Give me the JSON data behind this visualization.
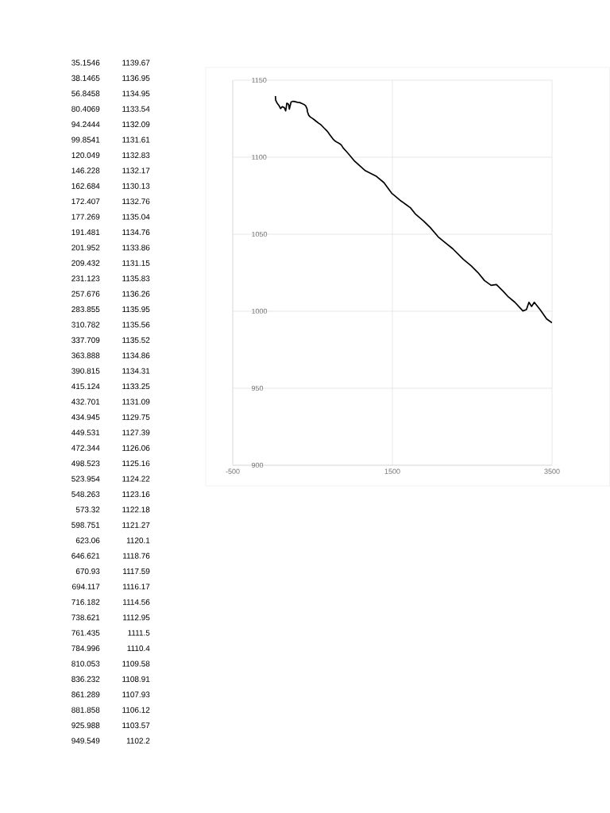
{
  "chart_data": [
    {
      "type": "other",
      "annotations": [
        "35.1546",
        "1139.67",
        "38.1465",
        "1136.95",
        "56.8458",
        "1134.95",
        "80.4069",
        "1133.54",
        "94.2444",
        "1132.09",
        "99.8541",
        "1131.61",
        "120.049",
        "1132.83",
        "146.228",
        "1132.17",
        "162.684",
        "1130.13",
        "172.407",
        "1132.76",
        "177.269",
        "1135.04",
        "191.481",
        "1134.76",
        "201.952",
        "1133.86",
        "209.432",
        "1131.15",
        "231.123",
        "1135.83",
        "257.676",
        "1136.26",
        "283.855",
        "1135.95",
        "310.782",
        "1135.56",
        "337.709",
        "1135.52",
        "363.888",
        "1134.86",
        "390.815",
        "1134.31",
        "415.124",
        "1133.25",
        "432.701",
        "1131.09",
        "434.945",
        "1129.75",
        "449.531",
        "1127.39",
        "472.344",
        "1126.06",
        "498.523",
        "1125.16",
        "523.954",
        "1124.22",
        "548.263",
        "1123.16",
        "573.32",
        "1122.18",
        "598.751",
        "1121.27",
        "623.06",
        "1120.1",
        "646.621",
        "1118.76",
        "670.93",
        "1117.59",
        "694.117",
        "1116.17",
        "716.182",
        "1114.56",
        "738.621",
        "1112.95",
        "761.435",
        "1111.5",
        "784.996",
        "1110.4",
        "810.053",
        "1109.58",
        "836.232",
        "1108.91",
        "861.289",
        "1107.93",
        "881.858",
        "1106.12",
        "925.988",
        "1103.57",
        "949.549",
        "1102.2"
      ]
    },
    {
      "type": "line",
      "x": [
        35,
        38,
        57,
        80,
        94,
        100,
        120,
        146,
        163,
        172,
        177,
        191,
        202,
        209,
        231,
        258,
        284,
        311,
        338,
        364,
        391,
        415,
        433,
        435,
        450,
        472,
        499,
        524,
        548,
        573,
        599,
        623,
        647,
        671,
        694,
        716,
        739,
        761,
        785,
        810,
        836,
        861,
        882,
        926,
        950,
        1029,
        1162,
        1294,
        1394,
        1493,
        1510,
        1610,
        1726,
        1792,
        1891,
        1975,
        2074,
        2174,
        2256,
        2389,
        2488,
        2572,
        2654,
        2737,
        2803,
        2886,
        2953,
        3035,
        3135,
        3179,
        3211,
        3244,
        3278,
        3351,
        3433,
        3500
      ],
      "values": [
        1139.7,
        1137.0,
        1135.0,
        1133.5,
        1132.1,
        1131.6,
        1132.8,
        1132.2,
        1130.1,
        1132.8,
        1135.0,
        1134.8,
        1133.9,
        1131.2,
        1135.8,
        1136.3,
        1136.0,
        1135.6,
        1135.5,
        1134.9,
        1134.3,
        1133.3,
        1131.1,
        1129.8,
        1127.4,
        1126.1,
        1125.2,
        1124.2,
        1123.2,
        1122.2,
        1121.3,
        1120.1,
        1118.8,
        1117.6,
        1116.2,
        1114.6,
        1113.0,
        1111.5,
        1110.4,
        1109.6,
        1108.9,
        1107.9,
        1106.1,
        1103.6,
        1102.2,
        1097.3,
        1091.2,
        1087.8,
        1083.5,
        1076.5,
        1075.8,
        1071.5,
        1067.2,
        1062.9,
        1058.6,
        1054.3,
        1048.3,
        1044.0,
        1040.6,
        1033.7,
        1029.4,
        1025.1,
        1019.9,
        1016.8,
        1017.3,
        1013.1,
        1009.3,
        1005.8,
        1000.2,
        1001.0,
        1005.8,
        1003.1,
        1005.8,
        1001.0,
        995.0,
        992.5
      ],
      "color": "#000000",
      "xlim": [
        -500,
        3500
      ],
      "ylim": [
        900,
        1150
      ],
      "xticks": [
        -500,
        1500,
        3500
      ],
      "yticks": [
        900,
        950,
        1000,
        1050,
        1100,
        1150
      ],
      "grid": true
    }
  ]
}
